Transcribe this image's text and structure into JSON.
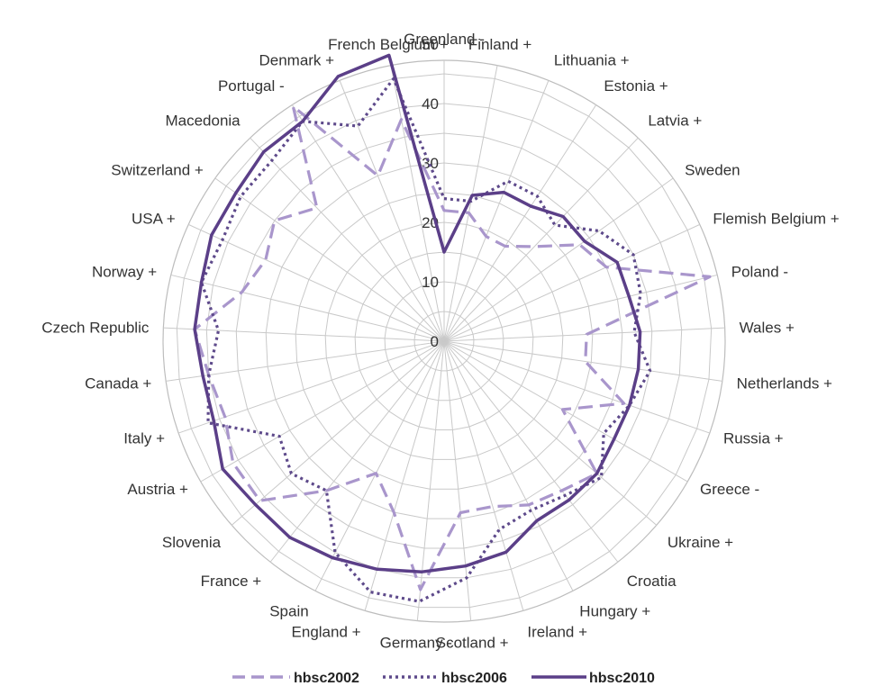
{
  "chart_data": {
    "type": "radar",
    "categories": [
      "Greenland -",
      "Finland +",
      "Lithuania +",
      "Estonia +",
      "Latvia +",
      "Sweden",
      "Flemish Belgium +",
      "Poland -",
      "Wales +",
      "Netherlands +",
      "Russia +",
      "Greece -",
      "Ukraine +",
      "Croatia",
      "Hungary +",
      "Ireland +",
      "Scotland +",
      "Germany -",
      "England +",
      "Spain",
      "France +",
      "Slovenia",
      "Austria +",
      "Italy +",
      "Canada +",
      "Czech Republic",
      "Norway +",
      "USA +",
      "Switzerland +",
      "Macedonia",
      "Portugal -",
      "Denmark +",
      "French Belgium +"
    ],
    "radial_ticks": [
      0,
      10,
      20,
      30,
      40,
      50
    ],
    "rmax": 50,
    "series": [
      {
        "name": "hbsc2002",
        "style": "dashed",
        "color": "#a996cc",
        "values": [
          22,
          22,
          19,
          19,
          22,
          28,
          30,
          46,
          24,
          24,
          32,
          23,
          34,
          32,
          31,
          29,
          29,
          42,
          30,
          25,
          32,
          41,
          41,
          39,
          40,
          42,
          35,
          33,
          35,
          31,
          47,
          30,
          38
        ]
      },
      {
        "name": "hbsc2006",
        "style": "dotted",
        "color": "#5e4a8b",
        "values": [
          24,
          24,
          29,
          29,
          27,
          32,
          35,
          34,
          32,
          35,
          33,
          31,
          35,
          33,
          32,
          33,
          40,
          44,
          44,
          40,
          32,
          34,
          32,
          42,
          40,
          38,
          42,
          41,
          42,
          42,
          44,
          39,
          45
        ]
      },
      {
        "name": "hbsc2010",
        "style": "solid",
        "color": "#5b3f88",
        "values": [
          15,
          25,
          27,
          27,
          29,
          29,
          32,
          32,
          33,
          33,
          33,
          33,
          34,
          34,
          34,
          37,
          38,
          39,
          40,
          41,
          42,
          42,
          43,
          41,
          41,
          42,
          42,
          43,
          43,
          44,
          44,
          48,
          49
        ]
      }
    ],
    "legend": "bottom",
    "grid": true
  }
}
